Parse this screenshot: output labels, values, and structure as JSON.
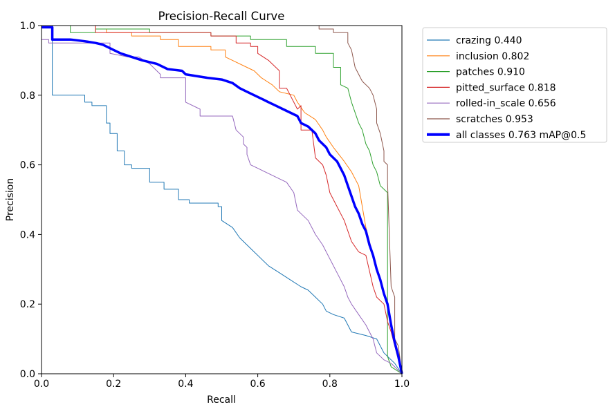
{
  "chart_data": {
    "type": "line",
    "title": "Precision-Recall Curve",
    "xlabel": "Recall",
    "ylabel": "Precision",
    "xlim": [
      0,
      1
    ],
    "ylim": [
      0,
      1
    ],
    "xticks": [
      "0.0",
      "0.2",
      "0.4",
      "0.6",
      "0.8",
      "1.0"
    ],
    "yticks": [
      "0.0",
      "0.2",
      "0.4",
      "0.6",
      "0.8",
      "1.0"
    ],
    "grid": false,
    "legend_position": "outside-right-top",
    "series": [
      {
        "name": "crazing 0.440",
        "color": "#1f77b4",
        "width": 1,
        "points": [
          [
            0,
            1.0
          ],
          [
            0.03,
            1.0
          ],
          [
            0.03,
            0.8
          ],
          [
            0.12,
            0.8
          ],
          [
            0.12,
            0.78
          ],
          [
            0.14,
            0.78
          ],
          [
            0.14,
            0.77
          ],
          [
            0.18,
            0.77
          ],
          [
            0.18,
            0.72
          ],
          [
            0.19,
            0.72
          ],
          [
            0.19,
            0.69
          ],
          [
            0.21,
            0.69
          ],
          [
            0.21,
            0.64
          ],
          [
            0.23,
            0.64
          ],
          [
            0.23,
            0.6
          ],
          [
            0.25,
            0.6
          ],
          [
            0.25,
            0.59
          ],
          [
            0.3,
            0.59
          ],
          [
            0.3,
            0.55
          ],
          [
            0.34,
            0.55
          ],
          [
            0.34,
            0.53
          ],
          [
            0.38,
            0.53
          ],
          [
            0.38,
            0.5
          ],
          [
            0.41,
            0.5
          ],
          [
            0.41,
            0.49
          ],
          [
            0.49,
            0.49
          ],
          [
            0.49,
            0.48
          ],
          [
            0.5,
            0.48
          ],
          [
            0.5,
            0.44
          ],
          [
            0.53,
            0.42
          ],
          [
            0.55,
            0.39
          ],
          [
            0.57,
            0.37
          ],
          [
            0.59,
            0.35
          ],
          [
            0.61,
            0.33
          ],
          [
            0.63,
            0.31
          ],
          [
            0.66,
            0.29
          ],
          [
            0.69,
            0.27
          ],
          [
            0.72,
            0.25
          ],
          [
            0.74,
            0.24
          ],
          [
            0.76,
            0.22
          ],
          [
            0.78,
            0.2
          ],
          [
            0.79,
            0.18
          ],
          [
            0.81,
            0.17
          ],
          [
            0.84,
            0.16
          ],
          [
            0.86,
            0.12
          ],
          [
            0.9,
            0.11
          ],
          [
            0.93,
            0.1
          ],
          [
            0.95,
            0.06
          ],
          [
            0.98,
            0.03
          ],
          [
            1.0,
            0.0
          ]
        ]
      },
      {
        "name": "inclusion 0.802",
        "color": "#ff7f0e",
        "width": 1,
        "points": [
          [
            0,
            1.0
          ],
          [
            0.15,
            1.0
          ],
          [
            0.15,
            0.99
          ],
          [
            0.18,
            0.99
          ],
          [
            0.18,
            0.98
          ],
          [
            0.25,
            0.98
          ],
          [
            0.25,
            0.97
          ],
          [
            0.33,
            0.97
          ],
          [
            0.33,
            0.96
          ],
          [
            0.38,
            0.96
          ],
          [
            0.38,
            0.94
          ],
          [
            0.47,
            0.94
          ],
          [
            0.47,
            0.93
          ],
          [
            0.51,
            0.93
          ],
          [
            0.51,
            0.91
          ],
          [
            0.53,
            0.9
          ],
          [
            0.57,
            0.88
          ],
          [
            0.59,
            0.87
          ],
          [
            0.61,
            0.85
          ],
          [
            0.64,
            0.83
          ],
          [
            0.66,
            0.81
          ],
          [
            0.7,
            0.8
          ],
          [
            0.71,
            0.78
          ],
          [
            0.73,
            0.75
          ],
          [
            0.76,
            0.73
          ],
          [
            0.78,
            0.7
          ],
          [
            0.79,
            0.68
          ],
          [
            0.81,
            0.65
          ],
          [
            0.84,
            0.61
          ],
          [
            0.86,
            0.58
          ],
          [
            0.88,
            0.54
          ],
          [
            0.89,
            0.48
          ],
          [
            0.9,
            0.42
          ],
          [
            0.92,
            0.34
          ],
          [
            0.94,
            0.27
          ],
          [
            0.96,
            0.2
          ],
          [
            0.97,
            0.14
          ],
          [
            0.98,
            0.08
          ],
          [
            0.99,
            0.05
          ],
          [
            1.0,
            0.0
          ]
        ]
      },
      {
        "name": "patches 0.910",
        "color": "#2ca02c",
        "width": 1,
        "points": [
          [
            0,
            1.0
          ],
          [
            0.08,
            1.0
          ],
          [
            0.08,
            0.98
          ],
          [
            0.15,
            0.98
          ],
          [
            0.15,
            0.99
          ],
          [
            0.3,
            0.99
          ],
          [
            0.3,
            0.98
          ],
          [
            0.47,
            0.98
          ],
          [
            0.47,
            0.97
          ],
          [
            0.58,
            0.97
          ],
          [
            0.58,
            0.96
          ],
          [
            0.68,
            0.96
          ],
          [
            0.68,
            0.94
          ],
          [
            0.76,
            0.94
          ],
          [
            0.76,
            0.92
          ],
          [
            0.81,
            0.92
          ],
          [
            0.81,
            0.88
          ],
          [
            0.83,
            0.88
          ],
          [
            0.83,
            0.83
          ],
          [
            0.85,
            0.82
          ],
          [
            0.86,
            0.78
          ],
          [
            0.88,
            0.72
          ],
          [
            0.89,
            0.7
          ],
          [
            0.9,
            0.66
          ],
          [
            0.91,
            0.64
          ],
          [
            0.92,
            0.6
          ],
          [
            0.93,
            0.58
          ],
          [
            0.94,
            0.54
          ],
          [
            0.96,
            0.52
          ],
          [
            0.96,
            0.05
          ],
          [
            0.97,
            0.02
          ],
          [
            1.0,
            0.0
          ]
        ]
      },
      {
        "name": "pitted_surface 0.818",
        "color": "#d62728",
        "width": 1,
        "points": [
          [
            0,
            1.0
          ],
          [
            0.15,
            1.0
          ],
          [
            0.15,
            0.98
          ],
          [
            0.47,
            0.98
          ],
          [
            0.47,
            0.97
          ],
          [
            0.54,
            0.97
          ],
          [
            0.54,
            0.95
          ],
          [
            0.58,
            0.95
          ],
          [
            0.58,
            0.94
          ],
          [
            0.6,
            0.94
          ],
          [
            0.6,
            0.92
          ],
          [
            0.63,
            0.9
          ],
          [
            0.65,
            0.88
          ],
          [
            0.66,
            0.87
          ],
          [
            0.66,
            0.82
          ],
          [
            0.68,
            0.82
          ],
          [
            0.7,
            0.78
          ],
          [
            0.71,
            0.76
          ],
          [
            0.72,
            0.77
          ],
          [
            0.72,
            0.7
          ],
          [
            0.75,
            0.7
          ],
          [
            0.76,
            0.62
          ],
          [
            0.78,
            0.6
          ],
          [
            0.79,
            0.57
          ],
          [
            0.8,
            0.52
          ],
          [
            0.82,
            0.48
          ],
          [
            0.84,
            0.44
          ],
          [
            0.86,
            0.38
          ],
          [
            0.88,
            0.35
          ],
          [
            0.9,
            0.34
          ],
          [
            0.92,
            0.25
          ],
          [
            0.93,
            0.22
          ],
          [
            0.95,
            0.2
          ],
          [
            0.96,
            0.15
          ],
          [
            0.97,
            0.12
          ],
          [
            0.98,
            0.08
          ],
          [
            1.0,
            0.0
          ]
        ]
      },
      {
        "name": "rolled-in_scale 0.656",
        "color": "#9467bd",
        "width": 1,
        "points": [
          [
            0,
            0.96
          ],
          [
            0.02,
            0.96
          ],
          [
            0.02,
            0.95
          ],
          [
            0.19,
            0.95
          ],
          [
            0.19,
            0.92
          ],
          [
            0.24,
            0.91
          ],
          [
            0.27,
            0.91
          ],
          [
            0.3,
            0.89
          ],
          [
            0.33,
            0.86
          ],
          [
            0.33,
            0.85
          ],
          [
            0.4,
            0.85
          ],
          [
            0.4,
            0.78
          ],
          [
            0.44,
            0.76
          ],
          [
            0.44,
            0.74
          ],
          [
            0.52,
            0.74
          ],
          [
            0.52,
            0.74
          ],
          [
            0.53,
            0.74
          ],
          [
            0.54,
            0.7
          ],
          [
            0.56,
            0.68
          ],
          [
            0.56,
            0.66
          ],
          [
            0.57,
            0.65
          ],
          [
            0.57,
            0.63
          ],
          [
            0.58,
            0.6
          ],
          [
            0.6,
            0.59
          ],
          [
            0.64,
            0.57
          ],
          [
            0.66,
            0.56
          ],
          [
            0.68,
            0.55
          ],
          [
            0.7,
            0.52
          ],
          [
            0.71,
            0.47
          ],
          [
            0.72,
            0.46
          ],
          [
            0.74,
            0.44
          ],
          [
            0.76,
            0.4
          ],
          [
            0.78,
            0.37
          ],
          [
            0.8,
            0.33
          ],
          [
            0.82,
            0.29
          ],
          [
            0.84,
            0.25
          ],
          [
            0.85,
            0.22
          ],
          [
            0.86,
            0.2
          ],
          [
            0.88,
            0.17
          ],
          [
            0.9,
            0.14
          ],
          [
            0.92,
            0.1
          ],
          [
            0.93,
            0.06
          ],
          [
            0.95,
            0.04
          ],
          [
            0.97,
            0.03
          ],
          [
            1.0,
            0.0
          ]
        ]
      },
      {
        "name": "scratches 0.953",
        "color": "#8c564b",
        "width": 1,
        "points": [
          [
            0,
            1.0
          ],
          [
            0.77,
            1.0
          ],
          [
            0.77,
            0.99
          ],
          [
            0.81,
            0.99
          ],
          [
            0.81,
            0.98
          ],
          [
            0.85,
            0.98
          ],
          [
            0.85,
            0.95
          ],
          [
            0.86,
            0.93
          ],
          [
            0.87,
            0.88
          ],
          [
            0.88,
            0.86
          ],
          [
            0.89,
            0.84
          ],
          [
            0.91,
            0.82
          ],
          [
            0.92,
            0.8
          ],
          [
            0.93,
            0.76
          ],
          [
            0.93,
            0.72
          ],
          [
            0.94,
            0.69
          ],
          [
            0.95,
            0.64
          ],
          [
            0.95,
            0.61
          ],
          [
            0.96,
            0.6
          ],
          [
            0.96,
            0.55
          ],
          [
            0.97,
            0.25
          ],
          [
            0.98,
            0.22
          ],
          [
            0.98,
            0.1
          ],
          [
            0.99,
            0.08
          ],
          [
            1.0,
            0.0
          ]
        ]
      },
      {
        "name": "all classes 0.763 mAP@0.5",
        "color": "#0000ff",
        "width": 3.5,
        "points": [
          [
            0,
            0.995
          ],
          [
            0.03,
            0.995
          ],
          [
            0.03,
            0.96
          ],
          [
            0.08,
            0.96
          ],
          [
            0.12,
            0.955
          ],
          [
            0.15,
            0.95
          ],
          [
            0.17,
            0.945
          ],
          [
            0.2,
            0.93
          ],
          [
            0.22,
            0.92
          ],
          [
            0.25,
            0.91
          ],
          [
            0.28,
            0.9
          ],
          [
            0.32,
            0.89
          ],
          [
            0.35,
            0.875
          ],
          [
            0.39,
            0.87
          ],
          [
            0.4,
            0.86
          ],
          [
            0.43,
            0.855
          ],
          [
            0.46,
            0.85
          ],
          [
            0.5,
            0.845
          ],
          [
            0.53,
            0.835
          ],
          [
            0.55,
            0.82
          ],
          [
            0.57,
            0.81
          ],
          [
            0.59,
            0.8
          ],
          [
            0.61,
            0.79
          ],
          [
            0.63,
            0.78
          ],
          [
            0.65,
            0.77
          ],
          [
            0.67,
            0.76
          ],
          [
            0.69,
            0.75
          ],
          [
            0.71,
            0.74
          ],
          [
            0.72,
            0.72
          ],
          [
            0.74,
            0.71
          ],
          [
            0.76,
            0.69
          ],
          [
            0.77,
            0.67
          ],
          [
            0.79,
            0.65
          ],
          [
            0.8,
            0.63
          ],
          [
            0.82,
            0.61
          ],
          [
            0.83,
            0.59
          ],
          [
            0.84,
            0.57
          ],
          [
            0.85,
            0.54
          ],
          [
            0.86,
            0.51
          ],
          [
            0.87,
            0.48
          ],
          [
            0.88,
            0.46
          ],
          [
            0.89,
            0.43
          ],
          [
            0.9,
            0.41
          ],
          [
            0.91,
            0.37
          ],
          [
            0.92,
            0.34
          ],
          [
            0.93,
            0.3
          ],
          [
            0.94,
            0.27
          ],
          [
            0.95,
            0.23
          ],
          [
            0.96,
            0.2
          ],
          [
            0.97,
            0.14
          ],
          [
            0.98,
            0.09
          ],
          [
            0.99,
            0.05
          ],
          [
            1.0,
            0.0
          ]
        ]
      }
    ]
  }
}
